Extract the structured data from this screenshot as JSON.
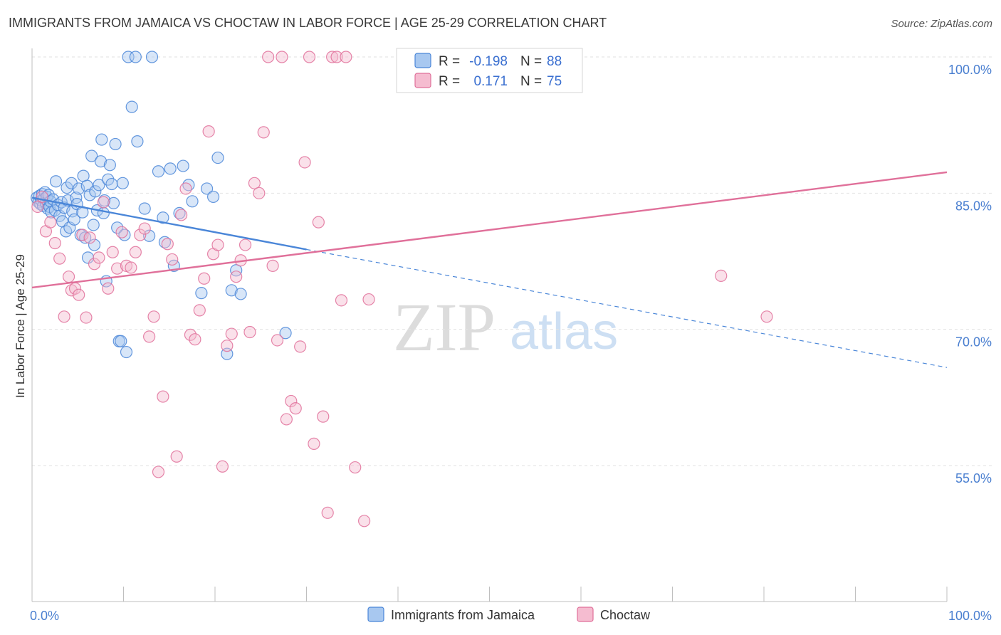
{
  "chart_data": {
    "type": "scatter",
    "title": "IMMIGRANTS FROM JAMAICA VS CHOCTAW IN LABOR FORCE | AGE 25-29 CORRELATION CHART",
    "source": "Source: ZipAtlas.com",
    "ylabel": "In Labor Force | Age 25-29",
    "xlim": [
      0,
      100
    ],
    "ylim": [
      40,
      102
    ],
    "y_ticks": [
      {
        "value": 100,
        "label": "100.0%"
      },
      {
        "value": 85,
        "label": "85.0%"
      },
      {
        "value": 70,
        "label": "70.0%"
      },
      {
        "value": 55,
        "label": "55.0%"
      }
    ],
    "x_ticks": [
      {
        "value": 0,
        "label": "0.0%"
      },
      {
        "value": 100,
        "label": "100.0%"
      }
    ],
    "watermark": {
      "zip": "ZIP",
      "atlas": "atlas"
    },
    "stats": {
      "r_label": "R =",
      "n_label": "N =",
      "jamaica": {
        "r": "-0.198",
        "n": "88"
      },
      "choctaw": {
        "r": "0.171",
        "n": "75"
      }
    },
    "series": [
      {
        "name": "Immigrants from Jamaica",
        "color": "#4a86d8",
        "fill": "#a8c8f0",
        "trend": {
          "x0": 0,
          "y0": 84.5,
          "x1": 30,
          "y1": 78.8,
          "dash_to_x": 100,
          "dash_to_y": 65.8
        },
        "points": [
          [
            0.2,
            84.5
          ],
          [
            0.4,
            84.0
          ],
          [
            0.5,
            84.7
          ],
          [
            0.6,
            83.8
          ],
          [
            0.7,
            84.2
          ],
          [
            0.8,
            84.9
          ],
          [
            0.9,
            83.6
          ],
          [
            1.0,
            84.4
          ],
          [
            1.1,
            85.1
          ],
          [
            1.2,
            83.9
          ],
          [
            1.3,
            84.6
          ],
          [
            1.4,
            83.3
          ],
          [
            1.5,
            84.8
          ],
          [
            1.6,
            83.5
          ],
          [
            1.7,
            84.1
          ],
          [
            1.8,
            82.9
          ],
          [
            2.0,
            84.3
          ],
          [
            2.2,
            83.1
          ],
          [
            2.3,
            86.3
          ],
          [
            2.5,
            83.7
          ],
          [
            2.7,
            82.5
          ],
          [
            2.9,
            84.0
          ],
          [
            3.0,
            81.9
          ],
          [
            3.2,
            83.4
          ],
          [
            3.4,
            80.8
          ],
          [
            3.5,
            85.6
          ],
          [
            3.6,
            84.2
          ],
          [
            3.8,
            81.2
          ],
          [
            4.0,
            86.1
          ],
          [
            4.1,
            83.0
          ],
          [
            4.3,
            82.1
          ],
          [
            4.5,
            84.5
          ],
          [
            4.6,
            83.8
          ],
          [
            4.8,
            85.5
          ],
          [
            5.0,
            80.4
          ],
          [
            5.2,
            82.9
          ],
          [
            5.3,
            86.9
          ],
          [
            5.5,
            80.1
          ],
          [
            5.7,
            85.8
          ],
          [
            5.8,
            77.9
          ],
          [
            6.0,
            84.8
          ],
          [
            6.2,
            89.1
          ],
          [
            6.4,
            81.5
          ],
          [
            6.5,
            79.3
          ],
          [
            6.6,
            85.2
          ],
          [
            6.8,
            83.1
          ],
          [
            7.0,
            85.9
          ],
          [
            7.2,
            88.5
          ],
          [
            7.3,
            90.9
          ],
          [
            7.5,
            82.8
          ],
          [
            7.6,
            84.2
          ],
          [
            7.8,
            75.3
          ],
          [
            8.0,
            86.5
          ],
          [
            8.2,
            88.1
          ],
          [
            8.4,
            86.0
          ],
          [
            8.6,
            83.9
          ],
          [
            8.8,
            90.4
          ],
          [
            9.0,
            81.2
          ],
          [
            9.2,
            68.7
          ],
          [
            9.4,
            68.7
          ],
          [
            9.6,
            86.1
          ],
          [
            9.8,
            80.4
          ],
          [
            10.0,
            67.5
          ],
          [
            10.2,
            100
          ],
          [
            10.6,
            94.5
          ],
          [
            11.0,
            100
          ],
          [
            11.2,
            90.7
          ],
          [
            12.0,
            83.3
          ],
          [
            12.5,
            80.3
          ],
          [
            12.8,
            100
          ],
          [
            13.5,
            87.4
          ],
          [
            14.0,
            82.3
          ],
          [
            14.2,
            79.6
          ],
          [
            14.8,
            87.7
          ],
          [
            15.2,
            77.0
          ],
          [
            15.8,
            82.8
          ],
          [
            16.2,
            88.0
          ],
          [
            16.8,
            85.9
          ],
          [
            17.2,
            84.1
          ],
          [
            18.2,
            74.0
          ],
          [
            18.8,
            85.5
          ],
          [
            19.5,
            84.6
          ],
          [
            20.0,
            88.9
          ],
          [
            21.0,
            67.3
          ],
          [
            21.5,
            74.3
          ],
          [
            22.0,
            76.5
          ],
          [
            22.5,
            73.9
          ],
          [
            27.4,
            69.6
          ]
        ]
      },
      {
        "name": "Choctaw",
        "color": "#e0709a",
        "fill": "#f5bcd0",
        "trend": {
          "x0": 0,
          "y0": 74.6,
          "x1": 100,
          "y1": 87.3
        },
        "points": [
          [
            0.3,
            83.5
          ],
          [
            0.8,
            84.6
          ],
          [
            1.2,
            80.8
          ],
          [
            1.7,
            81.8
          ],
          [
            2.2,
            79.5
          ],
          [
            2.7,
            77.8
          ],
          [
            3.2,
            71.4
          ],
          [
            3.7,
            75.8
          ],
          [
            4.0,
            74.3
          ],
          [
            4.4,
            74.5
          ],
          [
            4.8,
            73.8
          ],
          [
            5.2,
            80.4
          ],
          [
            5.6,
            71.3
          ],
          [
            6.0,
            80.1
          ],
          [
            6.5,
            77.2
          ],
          [
            7.0,
            77.9
          ],
          [
            7.5,
            84.0
          ],
          [
            8.0,
            74.5
          ],
          [
            8.5,
            78.5
          ],
          [
            9.0,
            76.7
          ],
          [
            9.5,
            80.7
          ],
          [
            10.0,
            77.0
          ],
          [
            10.5,
            76.8
          ],
          [
            11.0,
            78.5
          ],
          [
            11.5,
            80.4
          ],
          [
            12.0,
            81.1
          ],
          [
            12.5,
            69.2
          ],
          [
            13.0,
            71.4
          ],
          [
            13.5,
            54.3
          ],
          [
            14.0,
            62.6
          ],
          [
            14.5,
            79.4
          ],
          [
            15.0,
            77.7
          ],
          [
            15.5,
            56.0
          ],
          [
            16.0,
            82.6
          ],
          [
            16.5,
            85.5
          ],
          [
            17.0,
            69.4
          ],
          [
            17.5,
            68.9
          ],
          [
            18.0,
            72.1
          ],
          [
            18.5,
            75.6
          ],
          [
            19.0,
            91.8
          ],
          [
            19.5,
            78.3
          ],
          [
            20.0,
            79.3
          ],
          [
            20.5,
            54.9
          ],
          [
            21.0,
            68.2
          ],
          [
            21.5,
            69.5
          ],
          [
            22.0,
            75.8
          ],
          [
            22.5,
            77.6
          ],
          [
            23.0,
            79.3
          ],
          [
            23.5,
            69.7
          ],
          [
            24.0,
            86.1
          ],
          [
            24.5,
            85.0
          ],
          [
            25.0,
            91.7
          ],
          [
            25.5,
            100
          ],
          [
            26.0,
            77.0
          ],
          [
            26.5,
            68.8
          ],
          [
            27.0,
            100
          ],
          [
            27.5,
            60.1
          ],
          [
            28.0,
            62.1
          ],
          [
            28.5,
            61.3
          ],
          [
            29.0,
            68.1
          ],
          [
            29.5,
            88.4
          ],
          [
            30.0,
            100
          ],
          [
            30.5,
            57.4
          ],
          [
            31.0,
            81.8
          ],
          [
            31.5,
            60.4
          ],
          [
            32.0,
            49.8
          ],
          [
            32.5,
            100
          ],
          [
            33.0,
            100
          ],
          [
            33.5,
            73.2
          ],
          [
            34.0,
            100
          ],
          [
            35.0,
            54.8
          ],
          [
            36.0,
            48.9
          ],
          [
            36.5,
            73.3
          ],
          [
            75.0,
            75.9
          ],
          [
            80.0,
            71.4
          ]
        ]
      }
    ]
  }
}
